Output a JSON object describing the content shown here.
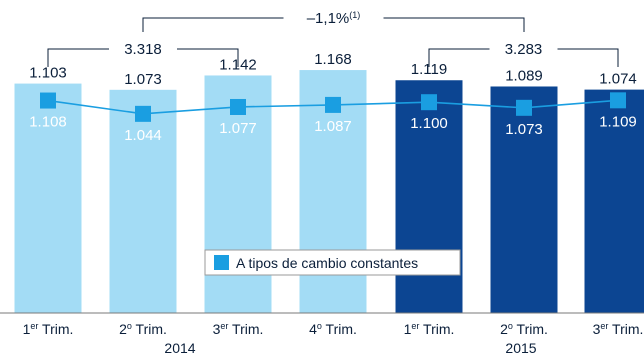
{
  "chart_data": {
    "type": "bar",
    "categories": [
      {
        "base": "1",
        "sup": "er",
        "rest": " Trim.",
        "year": "2014"
      },
      {
        "base": "2",
        "sup": "o",
        "rest": " Trim.",
        "year": "2014"
      },
      {
        "base": "3",
        "sup": "er",
        "rest": " Trim.",
        "year": "2014"
      },
      {
        "base": "4",
        "sup": "o",
        "rest": " Trim.",
        "year": "2014"
      },
      {
        "base": "1",
        "sup": "er",
        "rest": " Trim.",
        "year": "2015"
      },
      {
        "base": "2",
        "sup": "o",
        "rest": " Trim.",
        "year": "2015"
      },
      {
        "base": "3",
        "sup": "er",
        "rest": " Trim.",
        "year": "2015"
      }
    ],
    "series": [
      {
        "type": "bar",
        "values": [
          1103,
          1073,
          1142,
          1168,
          1119,
          1089,
          1074
        ],
        "labels": [
          "1.103",
          "1.073",
          "1.142",
          "1.168",
          "1.119",
          "1.089",
          "1.074"
        ],
        "colors": [
          "#a3dcf5",
          "#a3dcf5",
          "#a3dcf5",
          "#a3dcf5",
          "#0c4592",
          "#0c4592",
          "#0c4592"
        ]
      },
      {
        "type": "line",
        "name": "A tipos de cambio constantes",
        "values": [
          1108,
          1044,
          1077,
          1087,
          1100,
          1073,
          1109
        ],
        "labels": [
          "1.108",
          "1.044",
          "1.077",
          "1.087",
          "1.100",
          "1.073",
          "1.109"
        ],
        "color": "#1a9ee1"
      }
    ],
    "groups": [
      {
        "label": "2014",
        "start": 0,
        "end": 3
      },
      {
        "label": "2015",
        "start": 4,
        "end": 6
      }
    ],
    "brackets": [
      {
        "label": "3.318",
        "from": 0,
        "to": 2
      },
      {
        "label": "3.283",
        "from": 4,
        "to": 6
      },
      {
        "label": "–1,1%",
        "sup": "(1)",
        "from": 1,
        "to": 5
      }
    ],
    "legend": {
      "label": "A tipos de cambio constantes",
      "position": "center"
    },
    "ylim": [
      0,
      1250
    ]
  },
  "colors": {
    "bar_2014": "#a3dcf5",
    "bar_2015": "#0c4592",
    "line": "#1a9ee1",
    "text": "#0b1f3a",
    "label_on_light": "#ffffff",
    "label_on_dark": "#ffffff"
  }
}
